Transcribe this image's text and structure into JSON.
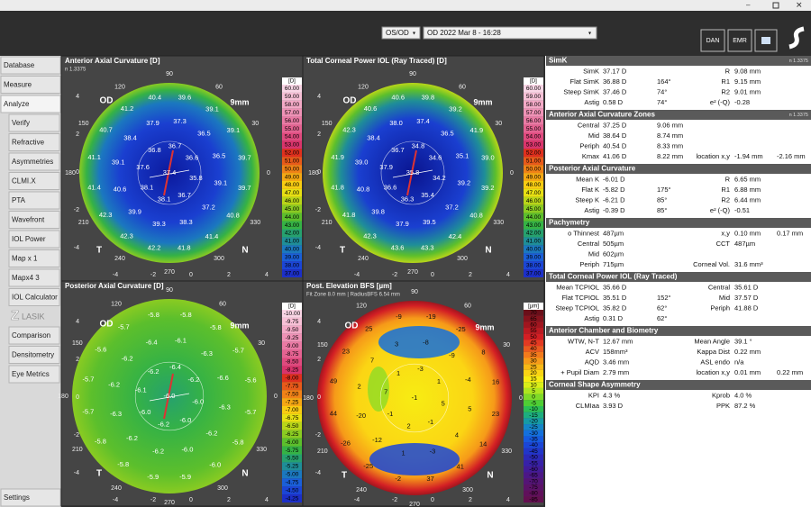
{
  "toolbar": {
    "eye_select": "OS/OD",
    "exam_select": "OD 2022 Mar 8 - 16:28",
    "buttons": [
      "DAN",
      "EMR"
    ]
  },
  "sidebar": {
    "main": [
      "Database",
      "Measure",
      "Analyze"
    ],
    "sub": [
      "Verify",
      "Refractive",
      "Asymmetries",
      "CLMI.X",
      "PTA",
      "Wavefront",
      "IOL Power",
      "Map x 1",
      "Mapx4 3",
      "IOL Calculator"
    ],
    "logo": "LASIK",
    "sub2": [
      "Comparison",
      "Densitometry",
      "Eye Metrics"
    ],
    "settings": "Settings"
  },
  "palettes": {
    "curvature": [
      "#f9d5e5",
      "#f7c0d6",
      "#f3a9c6",
      "#ef92b6",
      "#ea7aa4",
      "#e46291",
      "#df4a7e",
      "#d9346b",
      "#e0301e",
      "#e85a1a",
      "#f08217",
      "#f5a814",
      "#f8cc12",
      "#e7e013",
      "#b9d619",
      "#8acb22",
      "#5cbf2c",
      "#35b245",
      "#26a16e",
      "#1f8e98",
      "#1b78bf",
      "#1a5fd8",
      "#1b45d6",
      "#1c2fc8"
    ],
    "elevation": [
      "#6b0f1a",
      "#86131d",
      "#a0161f",
      "#bb1a22",
      "#d31f24",
      "#e33a22",
      "#ec5a1f",
      "#f27a1c",
      "#f69a19",
      "#f9b816",
      "#fbd514",
      "#f7ec13",
      "#d9ef18",
      "#aee61f",
      "#7fdb28",
      "#4fce34",
      "#2bbf55",
      "#1dae7f",
      "#169ba6",
      "#1486c8",
      "#1470dc",
      "#165ae0",
      "#1a46d8",
      "#2136c9",
      "#2b29b9",
      "#3721a8",
      "#421b97",
      "#4c1786",
      "#541476",
      "#5b1268",
      "#60105b",
      "#640f50"
    ]
  },
  "map_common": {
    "eye": "OD",
    "zone": "9mm",
    "temporal": "T",
    "nasal": "N",
    "degrees": [
      0,
      30,
      60,
      90,
      120,
      150,
      180,
      210,
      240,
      270,
      300,
      330
    ],
    "axis_ticks": [
      "4",
      "2",
      "0",
      "-2",
      "-4"
    ]
  },
  "maps": [
    {
      "title": "Anterior Axial Curvature  [D]",
      "subtitle": "n 1.3375",
      "unit": "[D]",
      "palette": "curvature",
      "scale": [
        "60.00",
        "59.00",
        "58.00",
        "57.00",
        "56.00",
        "55.00",
        "54.00",
        "53.00",
        "52.00",
        "51.00",
        "50.00",
        "49.00",
        "48.00",
        "47.00",
        "46.00",
        "45.00",
        "44.00",
        "43.00",
        "42.00",
        "41.00",
        "40.00",
        "39.00",
        "38.00",
        "37.00"
      ],
      "labels": [
        "37.4",
        "36.7",
        "36.6",
        "35.8",
        "36.7",
        "38.1",
        "38.1",
        "37.6",
        "36.8",
        "37.3",
        "36.5",
        "36.5",
        "39.1",
        "37.2",
        "38.3",
        "39.3",
        "39.9",
        "40.6",
        "39.1",
        "38.4",
        "37.9",
        "39.6",
        "39.1",
        "39.1",
        "39.7",
        "39.7",
        "40.8",
        "41.4",
        "41.8",
        "42.2",
        "42.3",
        "42.3",
        "41.4",
        "41.1",
        "40.7",
        "41.2",
        "40.4"
      ]
    },
    {
      "title": "Total Corneal Power IOL (Ray Traced)  [D]",
      "unit": "[D]",
      "palette": "curvature",
      "scale": [
        "60.00",
        "59.00",
        "58.00",
        "57.00",
        "56.00",
        "55.00",
        "54.00",
        "53.00",
        "52.00",
        "51.00",
        "50.00",
        "49.00",
        "48.00",
        "47.00",
        "46.00",
        "45.00",
        "44.00",
        "43.00",
        "42.00",
        "41.00",
        "40.00",
        "39.00",
        "38.00",
        "37.00"
      ],
      "labels": [
        "35.8",
        "34.8",
        "34.6",
        "34.2",
        "35.4",
        "36.3",
        "36.6",
        "37.9",
        "36.7",
        "37.4",
        "36.5",
        "35.1",
        "39.2",
        "37.2",
        "39.5",
        "37.9",
        "39.8",
        "40.8",
        "39.0",
        "38.4",
        "38.0",
        "39.8",
        "39.2",
        "41.9",
        "39.0",
        "39.2",
        "40.8",
        "42.4",
        "43.3",
        "43.6",
        "42.3",
        "41.8",
        "41.8",
        "41.9",
        "42.3",
        "40.6",
        "40.6"
      ]
    },
    {
      "title": "Posterior Axial Curvature  [D]",
      "unit": "[D]",
      "palette": "curvature",
      "scale": [
        "-10.00",
        "-9.75",
        "-9.50",
        "-9.25",
        "-9.00",
        "-8.75",
        "-8.50",
        "-8.25",
        "-8.00",
        "-7.75",
        "-7.50",
        "-7.25",
        "-7.00",
        "-6.75",
        "-6.50",
        "-6.25",
        "-6.00",
        "-5.75",
        "-5.50",
        "-5.25",
        "-5.00",
        "-4.75",
        "-4.50",
        "-4.25"
      ],
      "labels": [
        "-6.0",
        "-6.4",
        "-6.2",
        "-6.0",
        "-6.0",
        "-6.2",
        "-6.0",
        "-6.1",
        "-6.2",
        "-6.1",
        "-6.3",
        "-6.6",
        "-6.3",
        "-6.2",
        "-6.0",
        "-6.2",
        "-6.2",
        "-6.3",
        "-6.2",
        "-6.2",
        "-6.4",
        "-5.8",
        "-5.8",
        "-5.7",
        "-5.6",
        "-5.7",
        "-5.8",
        "-6.0",
        "-5.9",
        "-5.9",
        "-5.8",
        "-5.8",
        "-5.7",
        "-5.7",
        "-5.6",
        "-5.7",
        "-5.8"
      ]
    },
    {
      "title": "Post. Elevation BFS  [µm]",
      "subtitle": "Fit Zone 8.0 mm | RadiusBFS 6.54 mm",
      "unit": "[µm]",
      "palette": "elevation",
      "scale": [
        70,
        65,
        60,
        55,
        50,
        45,
        40,
        35,
        30,
        25,
        20,
        15,
        10,
        5,
        0,
        -5,
        -10,
        -15,
        -20,
        -25,
        -30,
        -35,
        -40,
        -45,
        -50,
        -55,
        -60,
        -65,
        -70,
        -75,
        -80,
        -85
      ],
      "labels": [
        "-1",
        "-3",
        "1",
        "5",
        "-1",
        "2",
        "-1",
        "7",
        "1",
        "-8",
        "-9",
        "-4",
        "5",
        "4",
        "-3",
        "1",
        "-12",
        "-20",
        "2",
        "7",
        "3",
        "-19",
        "-25",
        "8",
        "16",
        "23",
        "14",
        "41",
        "37",
        "-2",
        "-25",
        "-26",
        "44",
        "49",
        "23",
        "25",
        "-9"
      ]
    }
  ],
  "summary": {
    "sections": [
      {
        "title": "SimK",
        "note": "n 1.3375",
        "rows": [
          [
            "SimK",
            "37.17 D",
            null,
            "R",
            "9.08 mm",
            null
          ],
          [
            "Flat SimK",
            "36.88 D",
            "164°",
            "R1",
            "9.15 mm",
            null
          ],
          [
            "Steep SimK",
            "37.46 D",
            "74°",
            "R2",
            "9.01 mm",
            null
          ],
          [
            "Astig",
            "0.58 D",
            "74°",
            "e² (-Q)",
            "-0.28",
            null
          ]
        ]
      },
      {
        "title": "Anterior Axial Curvature Zones",
        "note": "n 1.3375",
        "rows": [
          [
            "Central",
            "37.25 D",
            "9.06 mm",
            null,
            null,
            null
          ],
          [
            "Mid",
            "38.64 D",
            "8.74 mm",
            null,
            null,
            null
          ],
          [
            "Periph",
            "40.54 D",
            "8.33 mm",
            null,
            null,
            null
          ],
          [
            "Kmax",
            "41.06 D",
            "8.22 mm",
            "location x,y",
            "-1.94 mm",
            "-2.16 mm"
          ]
        ]
      },
      {
        "title": "Posterior Axial Curvature",
        "rows": [
          [
            "Mean K",
            "-6.01 D",
            null,
            "R",
            "6.65 mm",
            null
          ],
          [
            "Flat K",
            "-5.82 D",
            "175°",
            "R1",
            "6.88 mm",
            null
          ],
          [
            "Steep K",
            "-6.21 D",
            "85°",
            "R2",
            "6.44 mm",
            null
          ],
          [
            "Astig",
            "-0.39 D",
            "85°",
            "e² (-Q)",
            "-0.51",
            null
          ]
        ]
      },
      {
        "title": "Pachymetry",
        "rows": [
          [
            "o Thinnest",
            "487µm",
            null,
            "x,y",
            "0.10 mm",
            "0.17 mm"
          ],
          [
            "Central",
            "505µm",
            null,
            "CCT",
            "487µm",
            null
          ],
          [
            "Mid",
            "602µm",
            null,
            null,
            null,
            null
          ],
          [
            "Periph",
            "715µm",
            null,
            "Corneal Vol.",
            "31.6 mm³",
            null
          ]
        ]
      },
      {
        "title": "Total Corneal Power IOL (Ray Traced)",
        "rows": [
          [
            "Mean TCPIOL",
            "35.66 D",
            null,
            "Central",
            "35.61 D",
            null
          ],
          [
            "Flat TCPIOL",
            "35.51 D",
            "152°",
            "Mid",
            "37.57 D",
            null
          ],
          [
            "Steep TCPIOL",
            "35.82 D",
            "62°",
            "Periph",
            "41.88 D",
            null
          ],
          [
            "Astig",
            "0.31 D",
            "62°",
            null,
            null,
            null
          ]
        ]
      },
      {
        "title": "Anterior Chamber and Biometry",
        "rows": [
          [
            "WTW, N-T",
            "12.67 mm",
            null,
            "Mean Angle",
            "39.1 °",
            null
          ],
          [
            "ACV",
            "158mm³",
            null,
            "Kappa Dist",
            "0.22 mm",
            null
          ],
          [
            "AQD",
            "3.46 mm",
            null,
            "ASL endo",
            "n/a",
            null
          ],
          [
            "+ Pupil Diam",
            "2.79 mm",
            null,
            "location x,y",
            "0.01 mm",
            "0.22 mm"
          ]
        ]
      },
      {
        "title": "Corneal Shape Asymmetry",
        "rows": [
          [
            "KPI",
            "4.3  %",
            null,
            "Kprob",
            "4.0  %",
            null
          ],
          [
            "CLMIaa",
            "3.93 D",
            null,
            "PPK",
            "87.2 %",
            null
          ]
        ]
      }
    ]
  }
}
